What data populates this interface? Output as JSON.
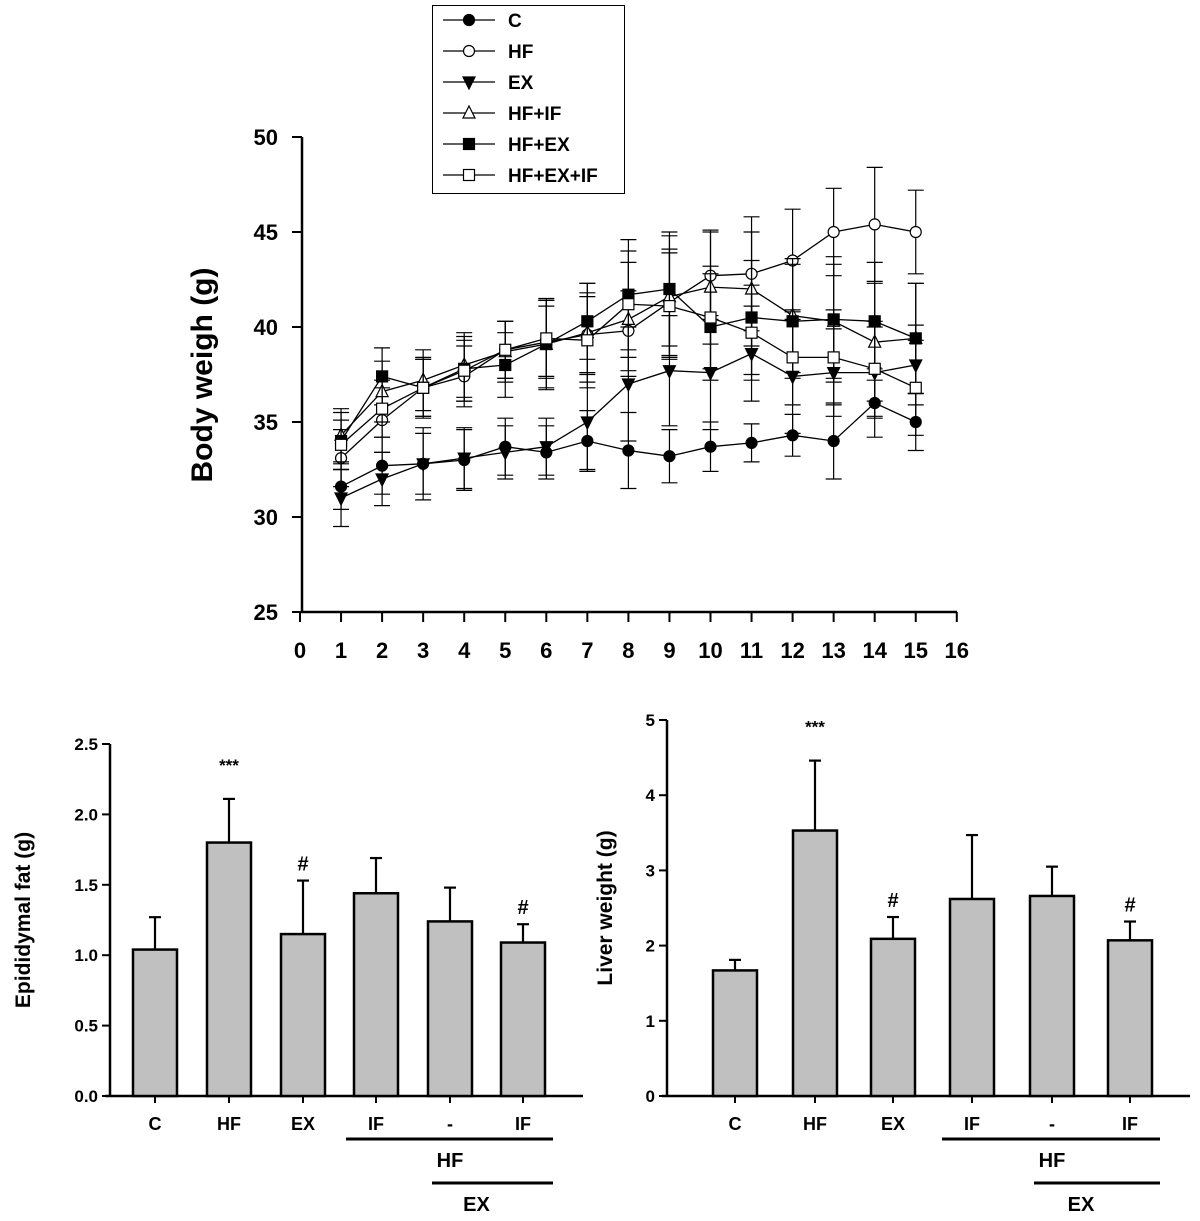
{
  "chart_data": [
    {
      "type": "line",
      "title": "",
      "xlabel": "",
      "ylabel": "Body weigh (g)",
      "xlim": [
        0,
        16
      ],
      "ylim": [
        25,
        50
      ],
      "xticks": [
        "0",
        "1",
        "2",
        "3",
        "4",
        "5",
        "6",
        "7",
        "8",
        "9",
        "10",
        "11",
        "12",
        "13",
        "14",
        "15",
        "16"
      ],
      "yticks": [
        "25",
        "30",
        "35",
        "40",
        "45",
        "50"
      ],
      "legend_position": "top-center",
      "x": [
        1,
        2,
        3,
        4,
        5,
        6,
        7,
        8,
        9,
        10,
        11,
        12,
        13,
        14,
        15
      ],
      "series": [
        {
          "name": "C",
          "marker": "filled-circle",
          "values": [
            31.6,
            32.7,
            32.8,
            33.0,
            33.7,
            33.4,
            34.0,
            33.5,
            33.2,
            33.7,
            33.9,
            34.3,
            34.0,
            36.0,
            35.0
          ],
          "error": [
            1.2,
            1.5,
            1.9,
            1.6,
            1.5,
            1.4,
            1.6,
            2.0,
            1.4,
            1.3,
            1.0,
            1.1,
            2.0,
            1.8,
            1.5
          ]
        },
        {
          "name": "HF",
          "marker": "open-circle",
          "values": [
            33.1,
            35.1,
            36.8,
            37.4,
            38.8,
            39.2,
            39.6,
            39.8,
            41.3,
            42.7,
            42.8,
            43.5,
            45.0,
            45.4,
            45.0
          ],
          "error": [
            1.5,
            1.7,
            1.5,
            1.6,
            1.5,
            1.9,
            2.0,
            2.1,
            2.8,
            2.3,
            3.0,
            2.7,
            2.3,
            3.0,
            2.2
          ]
        },
        {
          "name": "EX",
          "marker": "filled-triangle-down",
          "values": [
            31.0,
            32.0,
            32.8,
            33.1,
            33.4,
            33.7,
            35.0,
            37.0,
            37.7,
            37.6,
            38.6,
            37.4,
            37.6,
            37.6,
            38.0
          ],
          "error": [
            1.5,
            1.4,
            1.6,
            1.6,
            1.4,
            1.5,
            2.5,
            3.0,
            2.9,
            3.0,
            2.5,
            3.0,
            2.3,
            2.4,
            2.1
          ]
        },
        {
          "name": "HF+IF",
          "marker": "open-triangle-up",
          "values": [
            34.3,
            36.6,
            37.2,
            38.0,
            38.7,
            39.1,
            39.7,
            40.4,
            41.6,
            42.1,
            42.0,
            40.6,
            40.3,
            39.2,
            39.4
          ],
          "error": [
            1.4,
            1.6,
            1.6,
            1.7,
            1.6,
            2.3,
            2.6,
            3.0,
            3.2,
            3.0,
            3.0,
            3.0,
            3.0,
            3.1,
            2.9
          ]
        },
        {
          "name": "HF+EX",
          "marker": "filled-square",
          "values": [
            34.0,
            37.4,
            36.8,
            37.8,
            38.0,
            39.1,
            40.3,
            41.7,
            42.0,
            40.0,
            40.5,
            40.3,
            40.4,
            40.3,
            39.4
          ],
          "error": [
            1.5,
            1.5,
            1.6,
            1.7,
            1.7,
            2.4,
            2.0,
            2.9,
            3.0,
            2.8,
            3.0,
            3.0,
            3.3,
            3.1,
            2.9
          ]
        },
        {
          "name": "HF+EX+IF",
          "marker": "open-square",
          "values": [
            33.8,
            35.7,
            36.8,
            37.7,
            38.8,
            39.4,
            39.3,
            41.2,
            41.1,
            40.5,
            39.7,
            38.4,
            38.4,
            37.8,
            36.8
          ],
          "error": [
            1.3,
            1.5,
            1.5,
            1.6,
            1.5,
            2.0,
            2.5,
            2.8,
            2.8,
            2.7,
            2.5,
            2.5,
            2.5,
            2.5,
            2.5
          ]
        }
      ]
    },
    {
      "type": "bar",
      "title": "",
      "xlabel": "",
      "ylabel": "Epididymal fat (g)",
      "ylim": [
        0,
        2.5
      ],
      "yticks": [
        "0.0",
        "0.5",
        "1.0",
        "1.5",
        "2.0",
        "2.5"
      ],
      "categories": [
        "C",
        "HF",
        "EX",
        "IF",
        "-",
        "IF"
      ],
      "values": [
        1.04,
        1.8,
        1.15,
        1.44,
        1.24,
        1.09
      ],
      "error": [
        0.23,
        0.31,
        0.38,
        0.25,
        0.24,
        0.13
      ],
      "annotations": [
        "",
        "***",
        "#",
        "",
        "",
        "#"
      ],
      "group_labels": [
        {
          "text": "HF",
          "from": 3,
          "to": 5
        },
        {
          "text": "EX",
          "from": 4,
          "to": 5
        }
      ]
    },
    {
      "type": "bar",
      "title": "",
      "xlabel": "",
      "ylabel": "Liver weight (g)",
      "ylim": [
        0,
        5
      ],
      "yticks": [
        "0",
        "1",
        "2",
        "3",
        "4",
        "5"
      ],
      "categories": [
        "C",
        "HF",
        "EX",
        "IF",
        "-",
        "IF"
      ],
      "values": [
        1.67,
        3.53,
        2.09,
        2.62,
        2.66,
        2.07
      ],
      "error": [
        0.14,
        0.93,
        0.29,
        0.85,
        0.39,
        0.25
      ],
      "annotations": [
        "",
        "***",
        "#",
        "",
        "",
        "#"
      ],
      "group_labels": [
        {
          "text": "HF",
          "from": 3,
          "to": 5
        },
        {
          "text": "EX",
          "from": 4,
          "to": 5
        }
      ]
    }
  ],
  "colors": {
    "bar": "#c0c0c0",
    "ink": "#000000"
  }
}
